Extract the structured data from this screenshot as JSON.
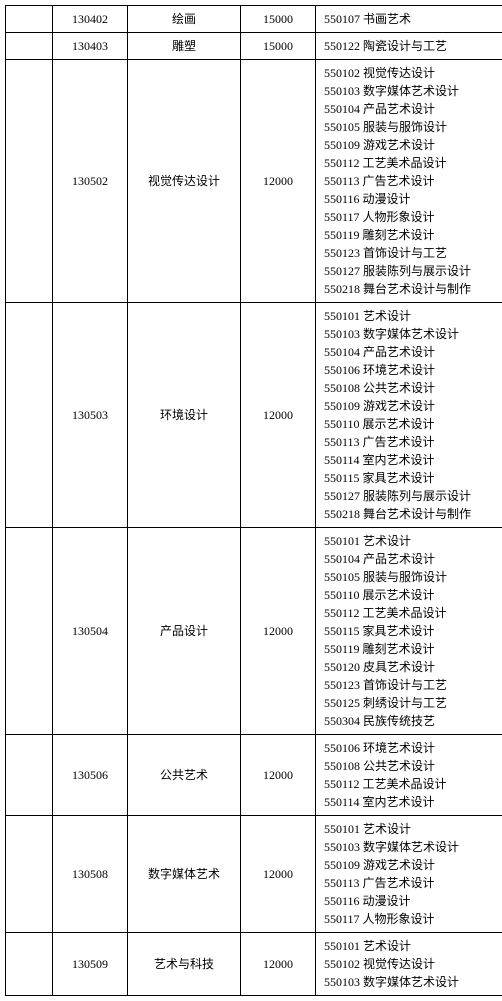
{
  "table": {
    "font_size": 12,
    "border_color": "#000000",
    "background_color": "#ffffff",
    "column_widths": {
      "blank": 34,
      "code": 62,
      "name": 100,
      "fee": 62,
      "list": 194
    },
    "rows": [
      {
        "code": "130402",
        "name": "绘画",
        "fee": "15000",
        "list": [
          "550107 书画艺术"
        ]
      },
      {
        "code": "130403",
        "name": "雕塑",
        "fee": "15000",
        "list": [
          "550122 陶瓷设计与工艺"
        ]
      },
      {
        "code": "130502",
        "name": "视觉传达设计",
        "fee": "12000",
        "list": [
          "550102 视觉传达设计",
          "550103 数字媒体艺术设计",
          "550104 产品艺术设计",
          "550105 服装与服饰设计",
          "550109 游戏艺术设计",
          "550112 工艺美术品设计",
          "550113 广告艺术设计",
          "550116 动漫设计",
          "550117 人物形象设计",
          "550119 雕刻艺术设计",
          "550123 首饰设计与工艺",
          "550127 服装陈列与展示设计",
          "550218 舞台艺术设计与制作"
        ]
      },
      {
        "code": "130503",
        "name": "环境设计",
        "fee": "12000",
        "list": [
          "550101 艺术设计",
          "550103 数字媒体艺术设计",
          "550104 产品艺术设计",
          "550106 环境艺术设计",
          "550108 公共艺术设计",
          "550109 游戏艺术设计",
          "550110 展示艺术设计",
          "550113 广告艺术设计",
          "550114 室内艺术设计",
          "550115 家具艺术设计",
          "550127 服装陈列与展示设计",
          "550218 舞台艺术设计与制作"
        ]
      },
      {
        "code": "130504",
        "name": "产品设计",
        "fee": "12000",
        "list": [
          "550101 艺术设计",
          "550104 产品艺术设计",
          "550105 服装与服饰设计",
          "550110 展示艺术设计",
          "550112 工艺美术品设计",
          "550115 家具艺术设计",
          "550119 雕刻艺术设计",
          "550120 皮具艺术设计",
          "550123 首饰设计与工艺",
          "550125 刺绣设计与工艺",
          "550304 民族传统技艺"
        ]
      },
      {
        "code": "130506",
        "name": "公共艺术",
        "fee": "12000",
        "list": [
          "550106 环境艺术设计",
          "550108 公共艺术设计",
          "550112 工艺美术品设计",
          "550114 室内艺术设计"
        ]
      },
      {
        "code": "130508",
        "name": "数字媒体艺术",
        "fee": "12000",
        "list": [
          "550101 艺术设计",
          "550103 数字媒体艺术设计",
          "550109 游戏艺术设计",
          "550113 广告艺术设计",
          "550116 动漫设计",
          "550117 人物形象设计"
        ]
      },
      {
        "code": "130509",
        "name": "艺术与科技",
        "fee": "12000",
        "list": [
          "550101 艺术设计",
          "550102 视觉传达设计",
          "550103 数字媒体艺术设计"
        ]
      }
    ]
  }
}
